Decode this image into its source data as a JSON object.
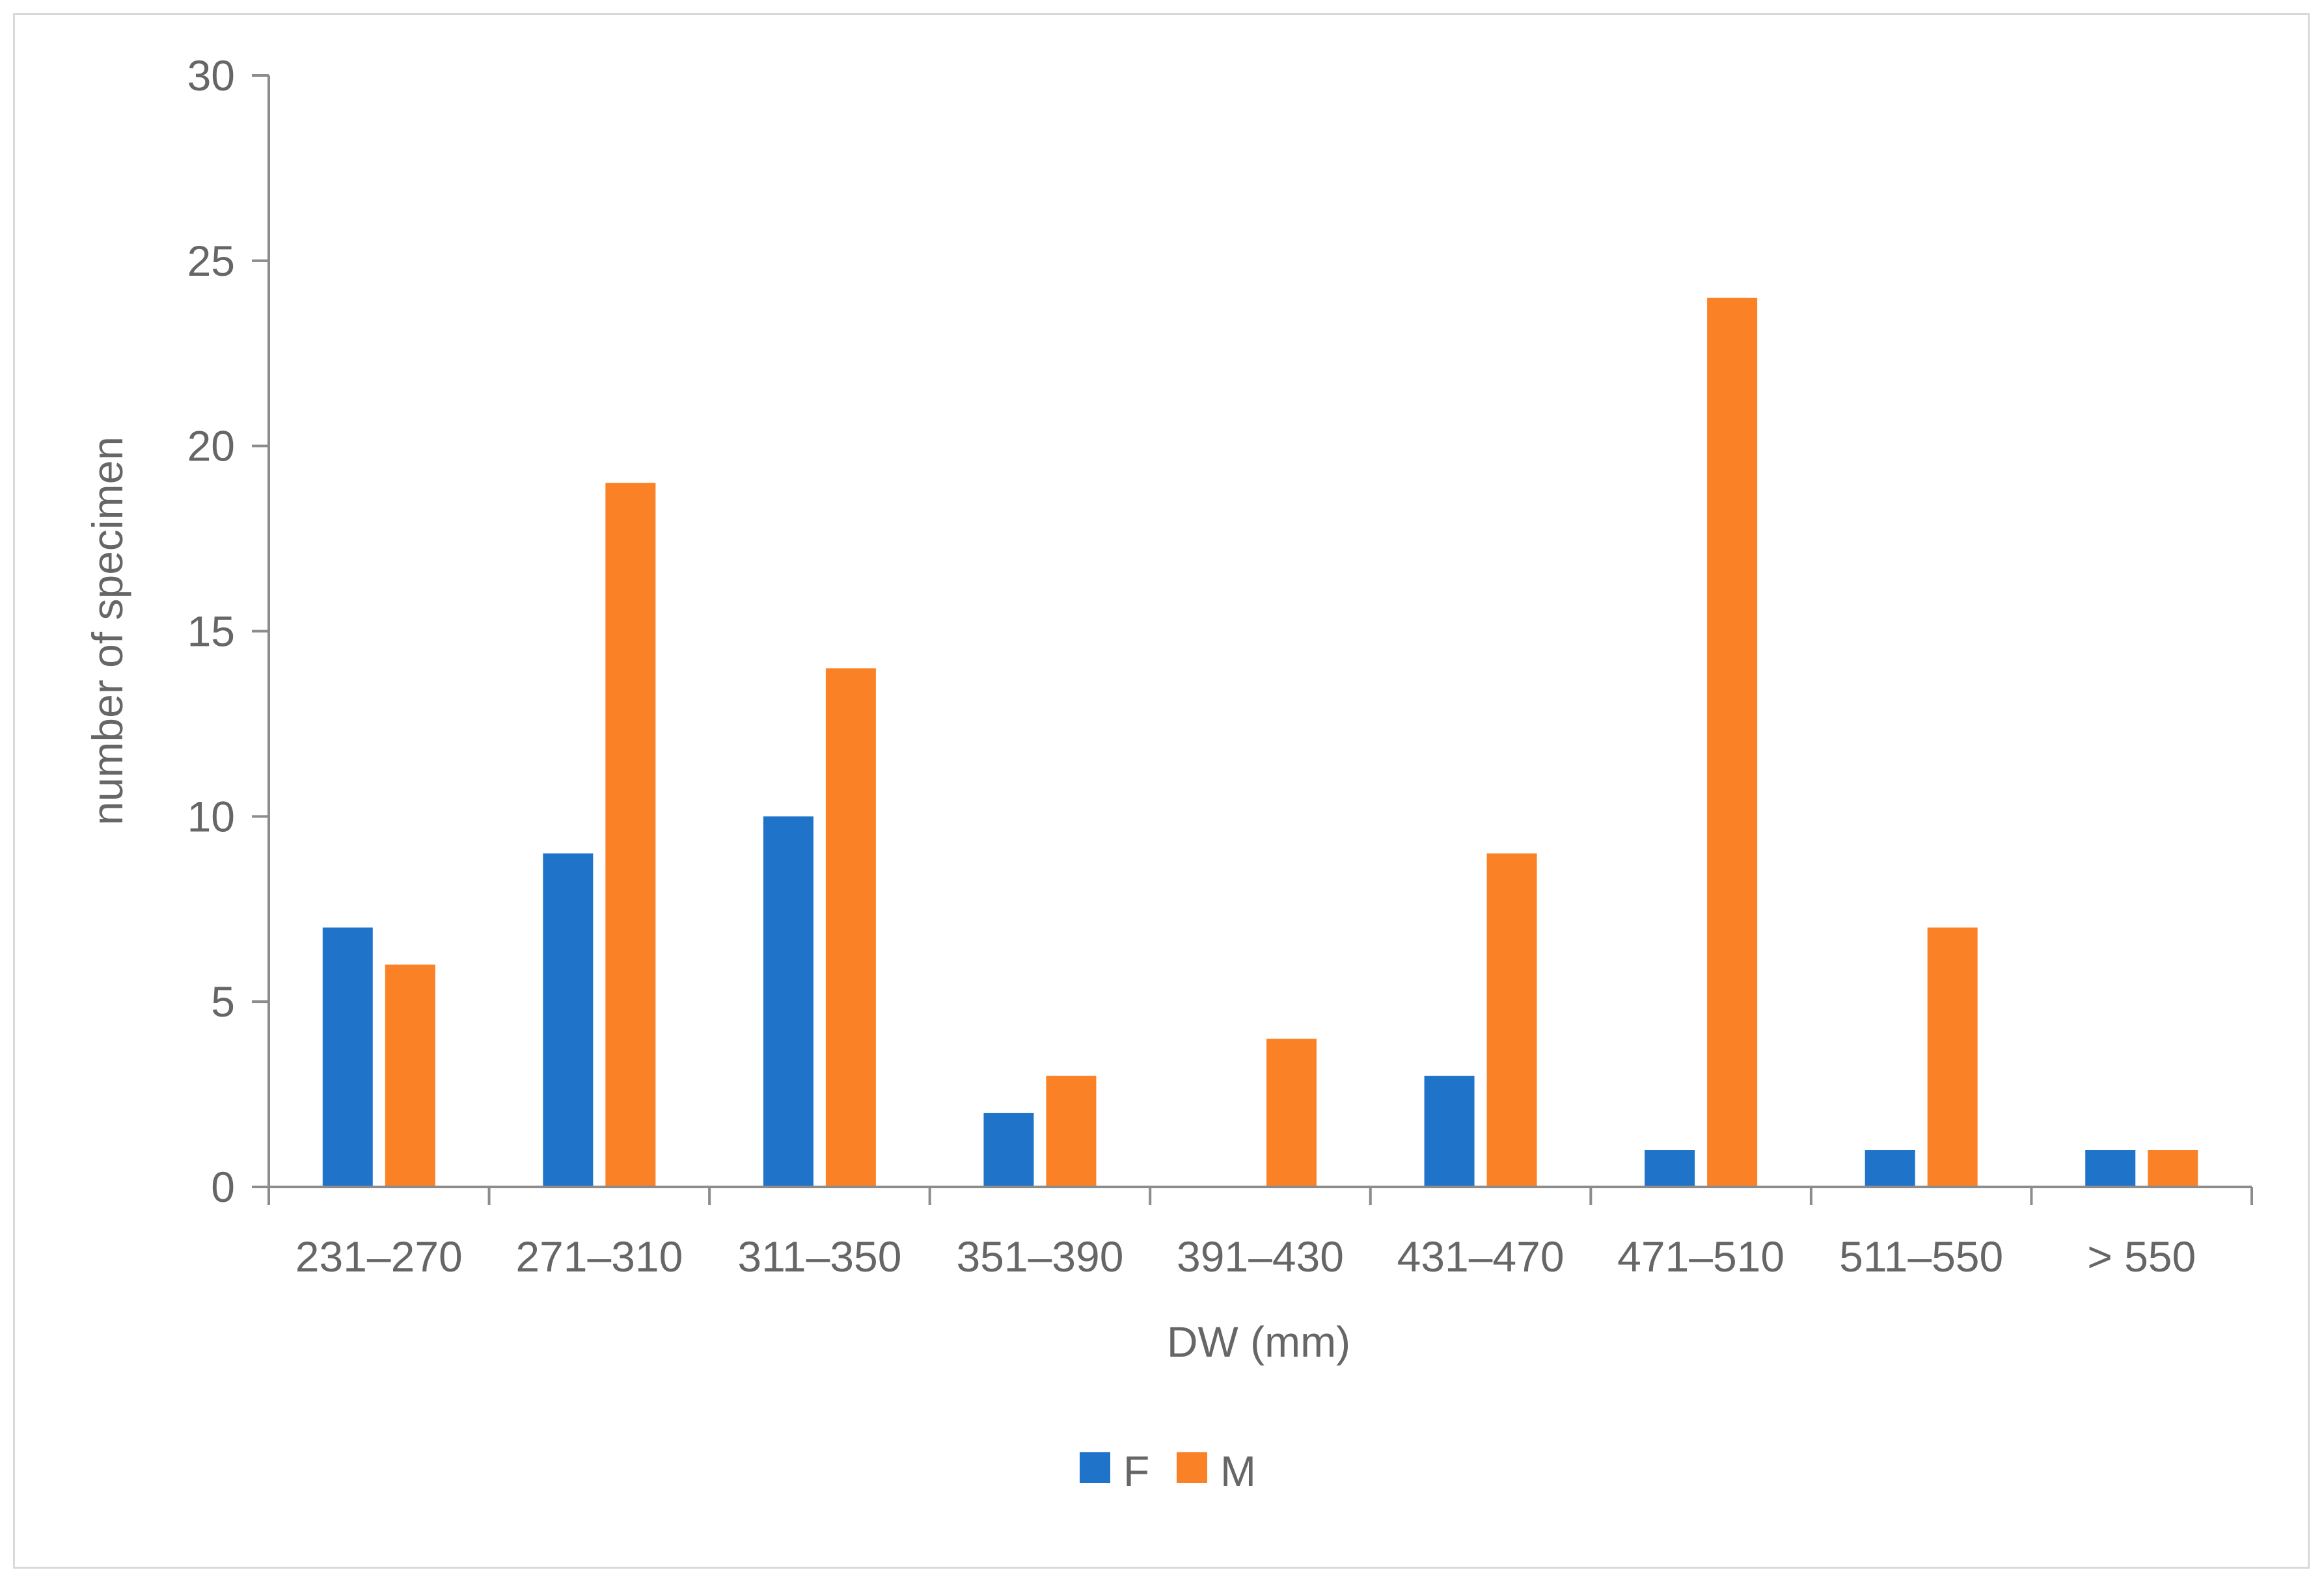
{
  "chart_data": {
    "type": "bar",
    "title": "",
    "xlabel": "DW (mm)",
    "ylabel": "number of specimen",
    "ylim": [
      0,
      30
    ],
    "yticks": [
      "0",
      "5",
      "10",
      "15",
      "20",
      "25",
      "30"
    ],
    "categories": [
      "231–270",
      "271–310",
      "311–350",
      "351–390",
      "391–430",
      "431–470",
      "471–510",
      "511–550",
      "> 550"
    ],
    "series": [
      {
        "name": "F",
        "color": "#1f73c9",
        "values": [
          7,
          9,
          10,
          2,
          0,
          3,
          1,
          1,
          1
        ]
      },
      {
        "name": "M",
        "color": "#fb8127",
        "values": [
          6,
          19,
          14,
          3,
          4,
          9,
          24,
          7,
          1
        ]
      }
    ],
    "grid": false,
    "legend": "bottom"
  }
}
